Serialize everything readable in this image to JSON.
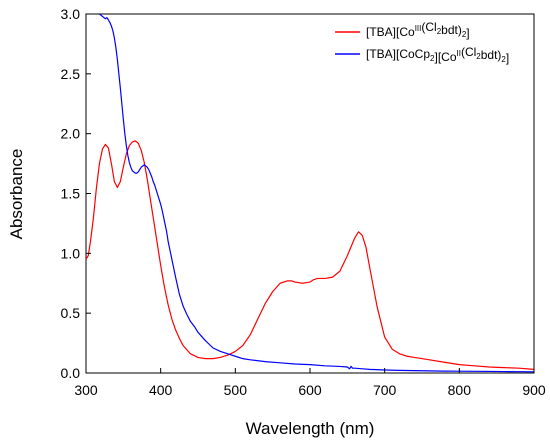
{
  "chart_data": {
    "type": "line",
    "xlabel": "Wavelength (nm)",
    "ylabel": "Absorbance",
    "xlim": [
      300,
      900
    ],
    "ylim": [
      0,
      3.0
    ],
    "x_ticks": [
      300,
      400,
      500,
      600,
      700,
      800,
      900
    ],
    "y_ticks": [
      0.0,
      0.5,
      1.0,
      1.5,
      2.0,
      2.5,
      3.0
    ],
    "x_tick_labels": [
      "300",
      "400",
      "500",
      "600",
      "700",
      "800",
      "900"
    ],
    "y_tick_labels": [
      "0.0",
      "0.5",
      "1.0",
      "1.5",
      "2.0",
      "2.5",
      "3.0"
    ],
    "legend_position": "top-right",
    "grid": false,
    "series": [
      {
        "name": "[TBA][CoIII(Cl2bdt)2]",
        "legend_parts": [
          {
            "t": "[TBA][Co"
          },
          {
            "t": "III",
            "s": "sup"
          },
          {
            "t": "(Cl"
          },
          {
            "t": "2",
            "s": "sub"
          },
          {
            "t": "bdt)"
          },
          {
            "t": "2",
            "s": "sub"
          },
          {
            "t": "]"
          }
        ],
        "color": "#ff0000",
        "x": [
          300,
          303,
          306,
          310,
          314,
          318,
          322,
          326,
          330,
          334,
          338,
          342,
          346,
          350,
          354,
          358,
          362,
          366,
          370,
          374,
          378,
          382,
          386,
          390,
          395,
          400,
          405,
          410,
          415,
          420,
          425,
          430,
          440,
          450,
          460,
          470,
          480,
          490,
          500,
          510,
          520,
          530,
          540,
          550,
          560,
          570,
          575,
          580,
          590,
          600,
          605,
          610,
          620,
          630,
          640,
          650,
          660,
          665,
          670,
          675,
          680,
          690,
          700,
          710,
          720,
          730,
          740,
          760,
          780,
          800,
          820,
          840,
          860,
          880,
          900
        ],
        "y": [
          0.95,
          0.98,
          1.1,
          1.3,
          1.55,
          1.75,
          1.87,
          1.91,
          1.88,
          1.75,
          1.6,
          1.55,
          1.6,
          1.72,
          1.83,
          1.9,
          1.93,
          1.94,
          1.92,
          1.86,
          1.76,
          1.62,
          1.46,
          1.3,
          1.1,
          0.9,
          0.72,
          0.57,
          0.45,
          0.36,
          0.29,
          0.23,
          0.16,
          0.13,
          0.12,
          0.12,
          0.13,
          0.15,
          0.18,
          0.23,
          0.32,
          0.45,
          0.58,
          0.68,
          0.75,
          0.77,
          0.77,
          0.76,
          0.75,
          0.76,
          0.78,
          0.79,
          0.79,
          0.8,
          0.85,
          0.98,
          1.13,
          1.18,
          1.15,
          1.05,
          0.88,
          0.55,
          0.3,
          0.2,
          0.16,
          0.14,
          0.13,
          0.11,
          0.09,
          0.07,
          0.06,
          0.05,
          0.045,
          0.04,
          0.03
        ]
      },
      {
        "name": "[TBA][CoCp2][CoII(Cl2bdt)2]",
        "legend_parts": [
          {
            "t": "[TBA][CoCp"
          },
          {
            "t": "2",
            "s": "sub"
          },
          {
            "t": "][Co"
          },
          {
            "t": "II",
            "s": "sup"
          },
          {
            "t": "(Cl"
          },
          {
            "t": "2",
            "s": "sub"
          },
          {
            "t": "bdt)"
          },
          {
            "t": "2",
            "s": "sub"
          },
          {
            "t": "]"
          }
        ],
        "color": "#0000ff",
        "x": [
          318,
          320,
          322,
          324,
          326,
          328,
          330,
          332,
          334,
          336,
          338,
          340,
          342,
          344,
          346,
          348,
          350,
          352,
          354,
          356,
          358,
          360,
          362,
          364,
          366,
          368,
          370,
          372,
          374,
          376,
          378,
          380,
          382,
          384,
          386,
          388,
          390,
          392,
          394,
          396,
          398,
          400,
          402,
          404,
          406,
          408,
          410,
          415,
          420,
          425,
          430,
          435,
          440,
          445,
          450,
          460,
          470,
          480,
          490,
          500,
          510,
          520,
          540,
          560,
          580,
          600,
          620,
          640,
          650,
          653,
          655,
          657,
          660,
          670,
          680,
          700,
          720,
          740,
          760,
          780,
          800,
          820,
          840,
          860,
          880,
          900
        ],
        "y": [
          3.0,
          2.99,
          2.98,
          2.97,
          2.96,
          2.97,
          2.95,
          2.93,
          2.9,
          2.86,
          2.8,
          2.72,
          2.62,
          2.5,
          2.38,
          2.25,
          2.12,
          2.0,
          1.9,
          1.82,
          1.76,
          1.72,
          1.69,
          1.68,
          1.67,
          1.67,
          1.68,
          1.7,
          1.72,
          1.73,
          1.74,
          1.73,
          1.72,
          1.7,
          1.67,
          1.64,
          1.6,
          1.57,
          1.53,
          1.49,
          1.45,
          1.41,
          1.36,
          1.3,
          1.24,
          1.18,
          1.1,
          0.95,
          0.8,
          0.66,
          0.56,
          0.49,
          0.43,
          0.39,
          0.34,
          0.27,
          0.21,
          0.18,
          0.16,
          0.14,
          0.12,
          0.11,
          0.095,
          0.085,
          0.075,
          0.07,
          0.06,
          0.055,
          0.05,
          0.035,
          0.055,
          0.04,
          0.04,
          0.035,
          0.03,
          0.025,
          0.022,
          0.02,
          0.018,
          0.016,
          0.015,
          0.014,
          0.013,
          0.012,
          0.011,
          0.01
        ]
      }
    ]
  }
}
